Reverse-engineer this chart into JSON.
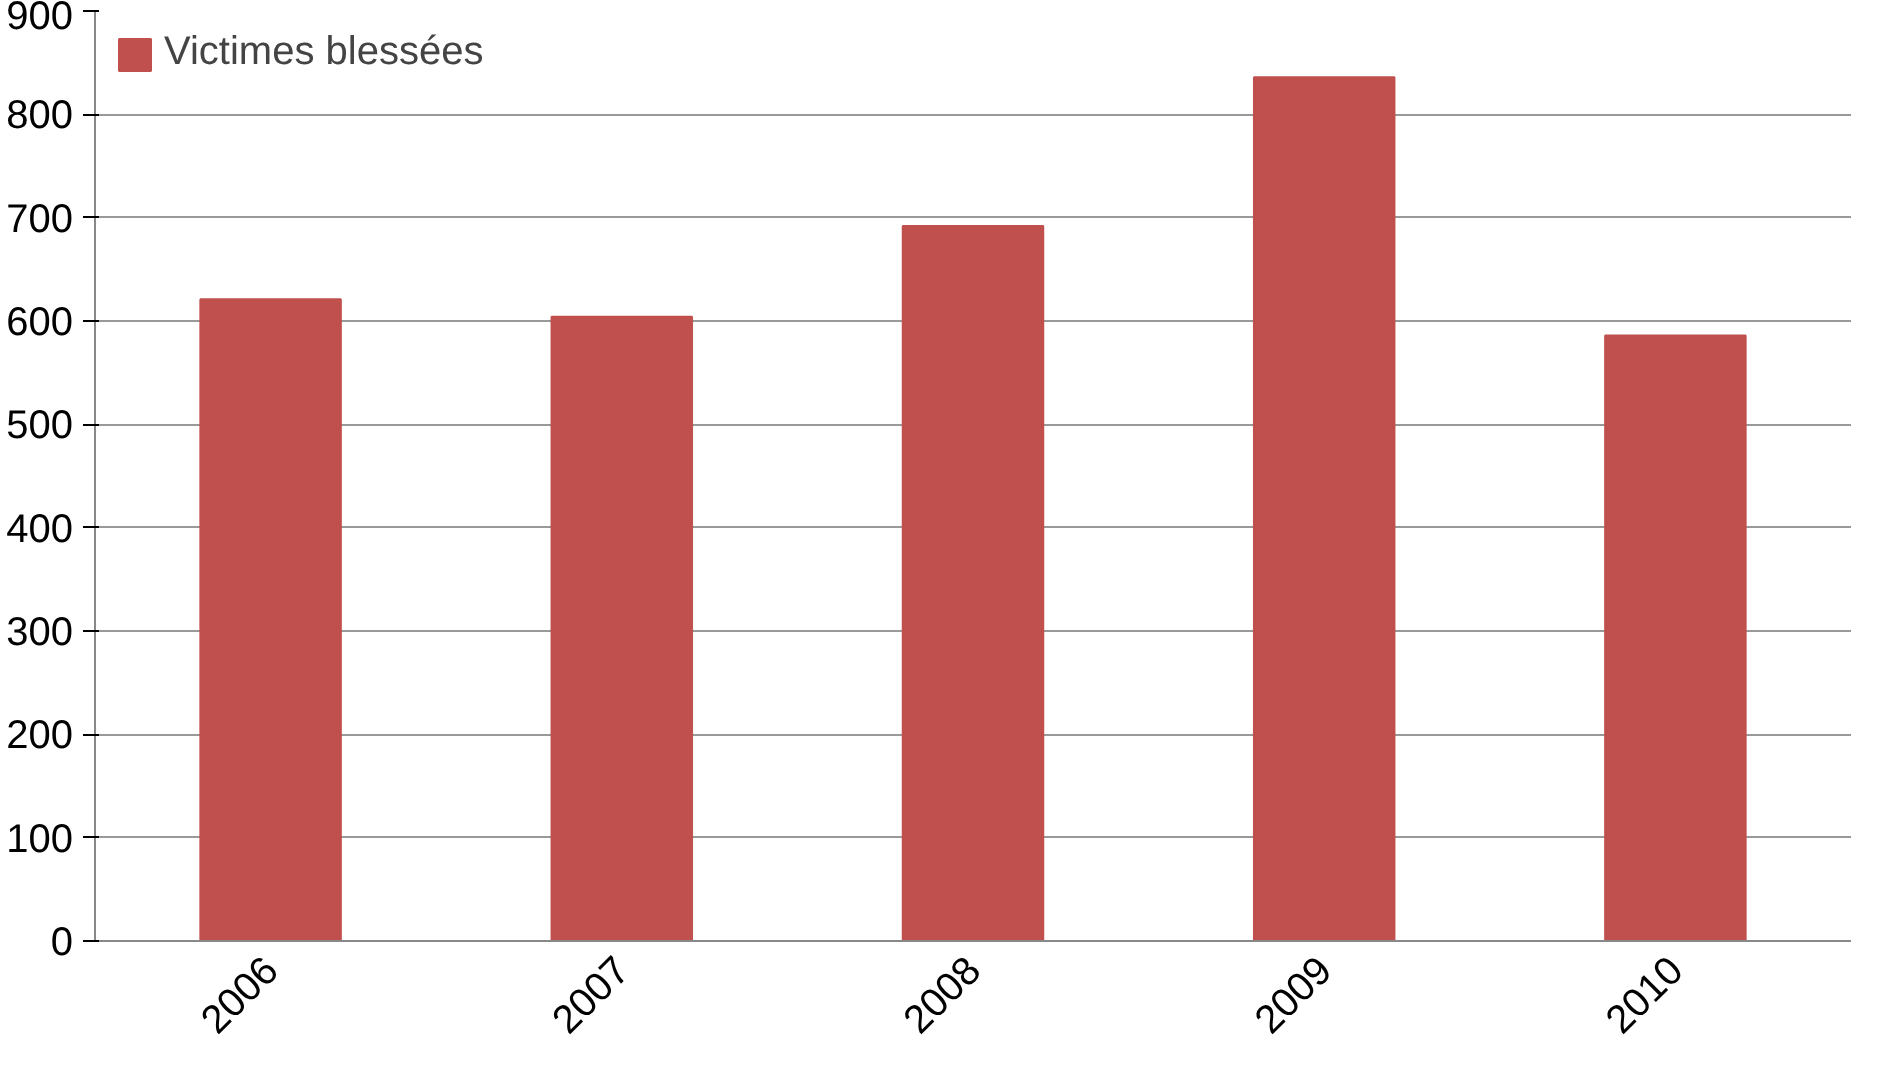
{
  "chart_data": {
    "type": "bar",
    "categories": [
      "2006",
      "2007",
      "2008",
      "2009",
      "2010"
    ],
    "series": [
      {
        "name": "Victimes blessées",
        "color": "#c0504d",
        "values": [
          621,
          604,
          692,
          836,
          586
        ]
      }
    ],
    "ylim": [
      0,
      900
    ],
    "yticks": [
      0,
      100,
      200,
      300,
      400,
      500,
      600,
      700,
      800,
      900
    ],
    "grid": "y",
    "legend": "top left"
  }
}
